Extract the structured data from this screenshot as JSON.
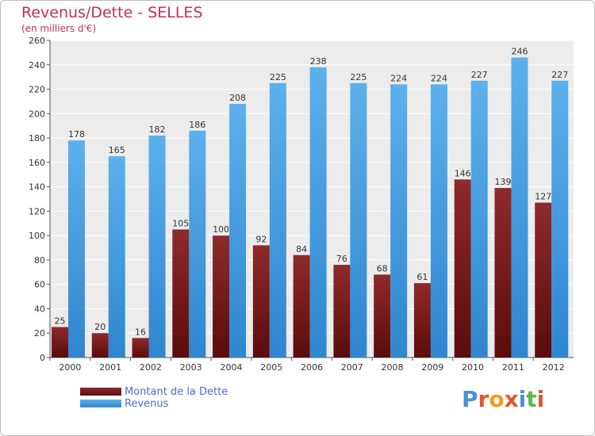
{
  "header": {
    "title": "Revenus/Dette - SELLES",
    "subtitle": "(en milliers d'€)"
  },
  "legend": {
    "debt_label": "Montant de la Dette",
    "revenue_label": "Revenus"
  },
  "logo": {
    "text": "Proxiti",
    "colors": [
      "#4a8fd8",
      "#e2562e",
      "#f39c1a",
      "#e2562e",
      "#4a8fd8",
      "#59b84a",
      "#e2562e"
    ]
  },
  "colors": {
    "debt": "#7a1a1a",
    "revenue": "#3f9ae0",
    "plot_bg": "#ececec",
    "grid": "#ffffff",
    "title": "#c0305a"
  },
  "chart_data": {
    "type": "bar",
    "title": "Revenus/Dette - SELLES",
    "subtitle": "(en milliers d'€)",
    "categories": [
      "2000",
      "2001",
      "2002",
      "2003",
      "2004",
      "2005",
      "2006",
      "2007",
      "2008",
      "2009",
      "2010",
      "2011",
      "2012"
    ],
    "series": [
      {
        "name": "Montant de la Dette",
        "values": [
          25,
          20,
          16,
          105,
          100,
          92,
          84,
          76,
          68,
          61,
          146,
          139,
          127
        ]
      },
      {
        "name": "Revenus",
        "values": [
          178,
          165,
          182,
          186,
          208,
          225,
          238,
          225,
          224,
          224,
          227,
          246,
          227
        ]
      }
    ],
    "ylim": [
      0,
      260
    ],
    "yticks": [
      0,
      20,
      40,
      60,
      80,
      100,
      120,
      140,
      160,
      180,
      200,
      220,
      240,
      260
    ],
    "grid": true,
    "legend_position": "bottom-left"
  }
}
